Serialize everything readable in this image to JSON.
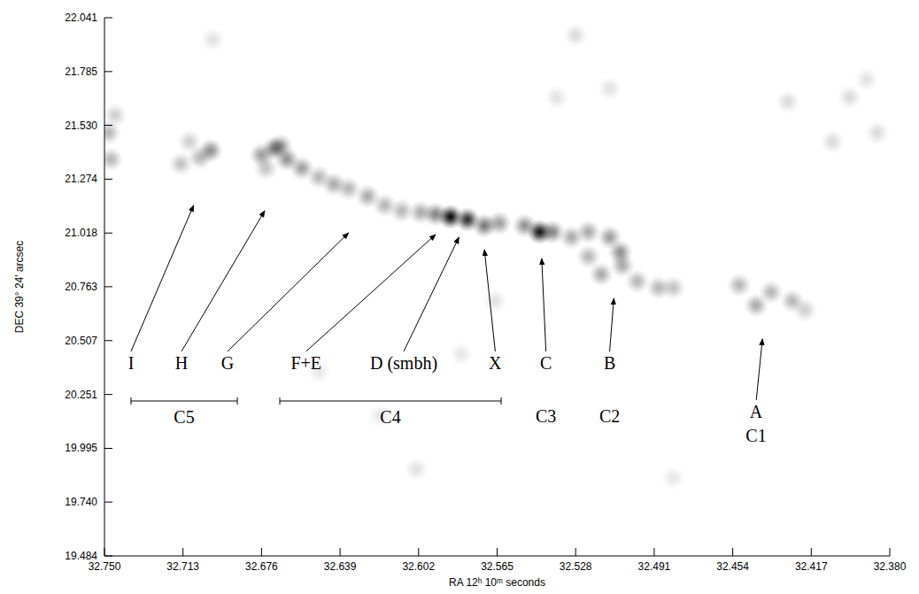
{
  "chart_data": {
    "type": "scatter",
    "xlabel": "RA 12ʰ 10ᵐ seconds",
    "ylabel": "DEC 39° 24′ arcsec",
    "xlim": [
      32.75,
      32.38
    ],
    "ylim": [
      19.484,
      22.041
    ],
    "xticks": [
      {
        "value": 32.75,
        "label": "32.750"
      },
      32.713,
      32.676,
      32.639,
      32.602,
      32.565,
      32.528,
      32.491,
      32.454,
      32.417,
      {
        "value": 32.38,
        "label": "32.380"
      }
    ],
    "yticks": [
      19.484,
      {
        "value": 19.74,
        "label": "19.740"
      },
      19.995,
      20.251,
      20.507,
      20.763,
      21.018,
      21.274,
      {
        "value": 21.53,
        "label": "21.530"
      },
      21.785,
      22.041
    ],
    "x": [
      32.587,
      32.579,
      32.594,
      32.571,
      32.545,
      32.552,
      32.539,
      32.564,
      32.601,
      32.61,
      32.618,
      32.626,
      32.635,
      32.642,
      32.649,
      32.657,
      32.664,
      32.67,
      32.676,
      32.667,
      32.674,
      32.7,
      32.705,
      32.714,
      32.71,
      32.748,
      32.747,
      32.745,
      32.53,
      32.522,
      32.512,
      32.507,
      32.506,
      32.516,
      32.522,
      32.499,
      32.489,
      32.482,
      32.451,
      32.443,
      32.436,
      32.426,
      32.42,
      32.528,
      32.512,
      32.537,
      32.428,
      32.399,
      32.407,
      32.386,
      32.391,
      32.582,
      32.603,
      32.649,
      32.482,
      32.699,
      32.62,
      32.566
    ],
    "values": [
      21.095,
      21.082,
      21.107,
      21.053,
      21.023,
      21.053,
      21.023,
      21.065,
      21.116,
      21.124,
      21.15,
      21.192,
      21.229,
      21.25,
      21.284,
      21.326,
      21.368,
      21.419,
      21.389,
      21.431,
      21.326,
      21.41,
      21.377,
      21.347,
      21.452,
      21.494,
      21.368,
      21.578,
      20.998,
      21.023,
      20.998,
      20.927,
      20.864,
      20.822,
      20.906,
      20.788,
      20.758,
      20.758,
      20.771,
      20.674,
      20.737,
      20.695,
      20.653,
      21.957,
      21.705,
      21.663,
      21.642,
      21.663,
      21.452,
      21.494,
      21.747,
      20.443,
      19.896,
      20.359,
      19.854,
      21.936,
      20.149,
      20.695
    ],
    "intensity": [
      1.0,
      0.85,
      0.5,
      0.55,
      0.95,
      0.45,
      0.5,
      0.4,
      0.35,
      0.3,
      0.3,
      0.35,
      0.3,
      0.35,
      0.3,
      0.4,
      0.45,
      0.5,
      0.4,
      0.4,
      0.25,
      0.45,
      0.3,
      0.25,
      0.2,
      0.3,
      0.3,
      0.2,
      0.35,
      0.35,
      0.4,
      0.45,
      0.35,
      0.35,
      0.3,
      0.3,
      0.3,
      0.25,
      0.3,
      0.35,
      0.3,
      0.3,
      0.2,
      0.15,
      0.12,
      0.12,
      0.15,
      0.15,
      0.15,
      0.15,
      0.12,
      0.1,
      0.12,
      0.1,
      0.1,
      0.12,
      0.1,
      0.12
    ],
    "annotations": [
      {
        "text": "I",
        "x": 32.7375,
        "y": 20.401,
        "target": [
          32.708,
          21.15
        ]
      },
      {
        "text": "H",
        "x": 32.7137,
        "y": 20.401,
        "target": [
          32.6745,
          21.124
        ]
      },
      {
        "text": "G",
        "x": 32.692,
        "y": 20.401,
        "target": [
          32.635,
          21.019
        ]
      },
      {
        "text": "F+E",
        "x": 32.655,
        "y": 20.401,
        "target": [
          32.594,
          21.011
        ]
      },
      {
        "text": "D (smbh)",
        "x": 32.609,
        "y": 20.401,
        "target": [
          32.583,
          20.998
        ]
      },
      {
        "text": "X",
        "x": 32.566,
        "y": 20.401,
        "target": [
          32.571,
          20.939
        ]
      },
      {
        "text": "C",
        "x": 32.542,
        "y": 20.401,
        "target": [
          32.544,
          20.897
        ]
      },
      {
        "text": "B",
        "x": 32.512,
        "y": 20.401,
        "target": [
          32.51,
          20.708
        ]
      },
      {
        "text": "A",
        "x": 32.443,
        "y": 20.17,
        "target": [
          32.44,
          20.515
        ]
      },
      {
        "text": "C3",
        "x": 32.542,
        "y": 20.149
      },
      {
        "text": "C2",
        "x": 32.512,
        "y": 20.149
      },
      {
        "text": "C1",
        "x": 32.443,
        "y": 20.056
      }
    ],
    "brackets": [
      {
        "text": "C5",
        "from": 32.7375,
        "to": 32.6874,
        "y": 20.22
      },
      {
        "text": "C4",
        "from": 32.6674,
        "to": 32.5631,
        "y": 20.22
      }
    ]
  }
}
